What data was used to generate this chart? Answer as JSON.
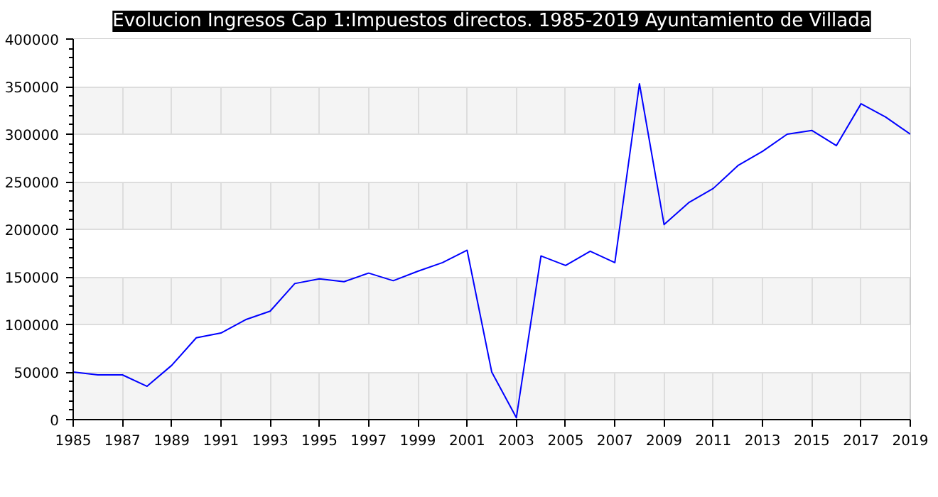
{
  "chart_data": {
    "type": "line",
    "title": "Evolucion Ingresos Cap 1:Impuestos directos. 1985-2019 Ayuntamiento de Villada",
    "x": [
      1985,
      1986,
      1987,
      1988,
      1989,
      1990,
      1991,
      1992,
      1993,
      1994,
      1995,
      1996,
      1997,
      1998,
      1999,
      2000,
      2001,
      2002,
      2003,
      2004,
      2005,
      2006,
      2007,
      2008,
      2009,
      2010,
      2011,
      2012,
      2013,
      2014,
      2015,
      2016,
      2017,
      2018,
      2019
    ],
    "series": [
      {
        "color": "#0000ff",
        "values": [
          50000,
          47000,
          47000,
          35000,
          57000,
          86000,
          91000,
          105000,
          114000,
          143000,
          148000,
          145000,
          154000,
          146000,
          156000,
          165000,
          178000,
          50000,
          2000,
          172000,
          162000,
          177000,
          165000,
          353000,
          205000,
          228000,
          243000,
          267000,
          282000,
          300000,
          304000,
          288000,
          332000,
          318000,
          300000
        ]
      }
    ],
    "xlim": [
      1985,
      2019
    ],
    "xticks": [
      1985,
      1987,
      1989,
      1991,
      1993,
      1995,
      1997,
      1999,
      2001,
      2003,
      2005,
      2007,
      2009,
      2011,
      2013,
      2015,
      2017,
      2019
    ],
    "ylim": [
      0,
      400000
    ],
    "yticks": [
      0,
      50000,
      100000,
      150000,
      200000,
      250000,
      300000,
      350000,
      400000
    ],
    "grid": true,
    "marker": "none",
    "line_style": "solid"
  }
}
